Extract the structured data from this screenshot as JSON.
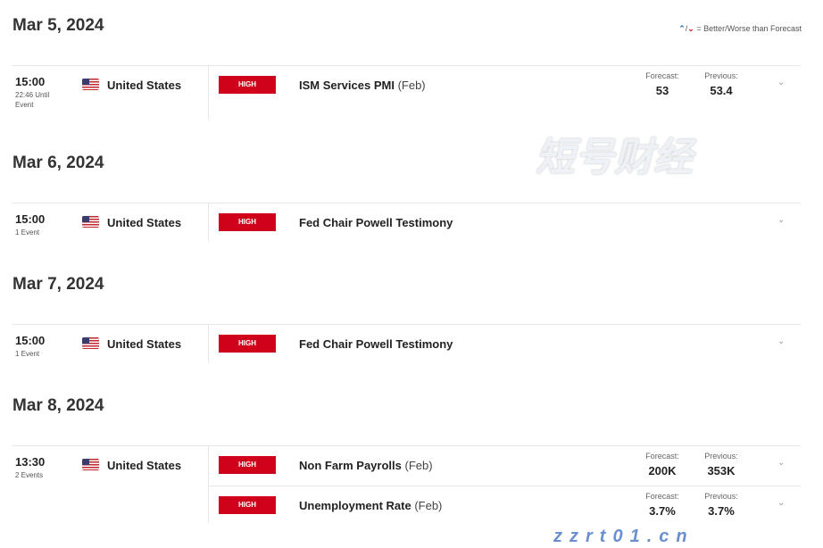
{
  "legend": {
    "better_icon": "arrow-up-icon",
    "worse_icon": "arrow-down-icon",
    "text": "= Better/Worse than Forecast",
    "up": "⌃",
    "down": "⌄",
    "sep": "/"
  },
  "days": [
    {
      "date": "Mar 5, 2024",
      "time": "15:00",
      "sub": "22:46 Until Event",
      "country": "United States",
      "events": [
        {
          "impact": "HIGH",
          "title": "ISM Services PMI",
          "period": "(Feb)",
          "forecast_label": "Forecast:",
          "forecast": "53",
          "previous_label": "Previous:",
          "previous": "53.4"
        }
      ]
    },
    {
      "date": "Mar 6, 2024",
      "time": "15:00",
      "sub": "1 Event",
      "country": "United States",
      "events": [
        {
          "impact": "HIGH",
          "title": "Fed Chair Powell Testimony",
          "period": ""
        }
      ]
    },
    {
      "date": "Mar 7, 2024",
      "time": "15:00",
      "sub": "1 Event",
      "country": "United States",
      "events": [
        {
          "impact": "HIGH",
          "title": "Fed Chair Powell Testimony",
          "period": ""
        }
      ]
    },
    {
      "date": "Mar 8, 2024",
      "time": "13:30",
      "sub": "2 Events",
      "country": "United States",
      "events": [
        {
          "impact": "HIGH",
          "title": "Non Farm Payrolls",
          "period": "(Feb)",
          "forecast_label": "Forecast:",
          "forecast": "200K",
          "previous_label": "Previous:",
          "previous": "353K"
        },
        {
          "impact": "HIGH",
          "title": "Unemployment Rate",
          "period": "(Feb)",
          "forecast_label": "Forecast:",
          "forecast": "3.7%",
          "previous_label": "Previous:",
          "previous": "3.7%"
        }
      ]
    }
  ],
  "chevron": "⌄",
  "watermark": {
    "cn": "短号财经",
    "url": "zzrt01.cn"
  },
  "colors": {
    "high": "#d0021b",
    "better": "#2a6fb0",
    "worse": "#c0262d"
  }
}
